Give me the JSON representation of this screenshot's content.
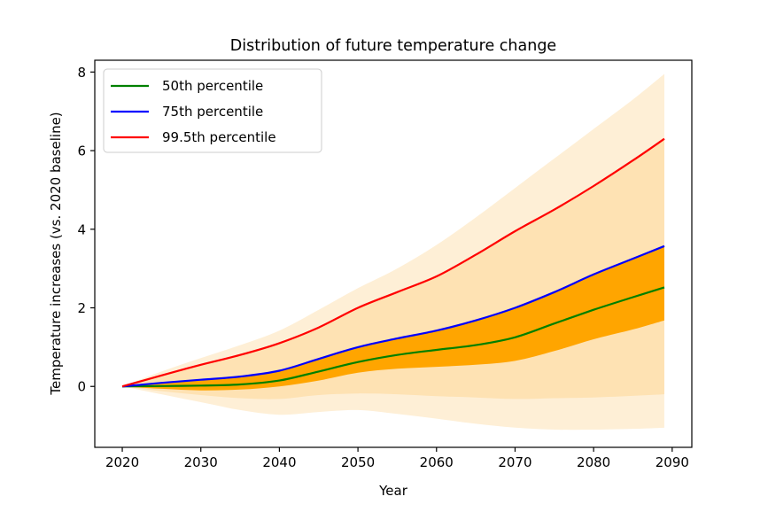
{
  "chart_data": {
    "type": "area",
    "title": "Distribution of future temperature change",
    "xlabel": "Year",
    "ylabel": "Temperature increases (vs. 2020 baseline)",
    "xlim": [
      2016.5,
      2092.5
    ],
    "ylim": [
      -1.55,
      8.3
    ],
    "xticks": [
      2020,
      2030,
      2040,
      2050,
      2060,
      2070,
      2080,
      2090
    ],
    "yticks": [
      0,
      2,
      4,
      6,
      8
    ],
    "grid": false,
    "legend_position": "top-left",
    "x": [
      2020,
      2025,
      2030,
      2035,
      2040,
      2045,
      2050,
      2055,
      2060,
      2065,
      2070,
      2075,
      2080,
      2085,
      2089
    ],
    "bands": [
      {
        "name": "outer-band",
        "color": "#feefd6",
        "lower": [
          0,
          -0.2,
          -0.4,
          -0.6,
          -0.72,
          -0.65,
          -0.6,
          -0.7,
          -0.82,
          -0.95,
          -1.05,
          -1.1,
          -1.1,
          -1.08,
          -1.05
        ],
        "upper": [
          0,
          0.38,
          0.72,
          1.05,
          1.42,
          1.95,
          2.5,
          3.0,
          3.6,
          4.3,
          5.05,
          5.8,
          6.55,
          7.3,
          7.95
        ]
      },
      {
        "name": "middle-band",
        "color": "#fee2b3",
        "lower": [
          0,
          -0.12,
          -0.22,
          -0.3,
          -0.32,
          -0.22,
          -0.18,
          -0.2,
          -0.25,
          -0.28,
          -0.32,
          -0.3,
          -0.28,
          -0.24,
          -0.2
        ],
        "upper": [
          0,
          0.28,
          0.55,
          0.8,
          1.1,
          1.5,
          2.0,
          2.4,
          2.8,
          3.35,
          3.95,
          4.5,
          5.1,
          5.75,
          6.3
        ]
      },
      {
        "name": "inner-band",
        "color": "#ffa500",
        "lower": [
          0,
          -0.06,
          -0.1,
          -0.08,
          0.0,
          0.15,
          0.35,
          0.45,
          0.5,
          0.55,
          0.65,
          0.9,
          1.2,
          1.45,
          1.68
        ],
        "upper": [
          0,
          0.09,
          0.17,
          0.25,
          0.4,
          0.7,
          1.0,
          1.22,
          1.42,
          1.68,
          2.0,
          2.4,
          2.85,
          3.25,
          3.57
        ]
      }
    ],
    "series": [
      {
        "name": "50th percentile",
        "color": "#008000",
        "values": [
          0,
          0.01,
          0.02,
          0.05,
          0.15,
          0.38,
          0.62,
          0.8,
          0.93,
          1.05,
          1.25,
          1.6,
          1.95,
          2.27,
          2.52
        ]
      },
      {
        "name": "75th percentile",
        "color": "#0000ff",
        "values": [
          0,
          0.09,
          0.17,
          0.25,
          0.4,
          0.7,
          1.0,
          1.22,
          1.42,
          1.68,
          2.0,
          2.4,
          2.85,
          3.25,
          3.57
        ]
      },
      {
        "name": "99.5th percentile",
        "color": "#ff0000",
        "values": [
          0,
          0.28,
          0.55,
          0.8,
          1.1,
          1.5,
          2.0,
          2.4,
          2.8,
          3.35,
          3.95,
          4.5,
          5.1,
          5.75,
          6.3
        ]
      }
    ]
  }
}
